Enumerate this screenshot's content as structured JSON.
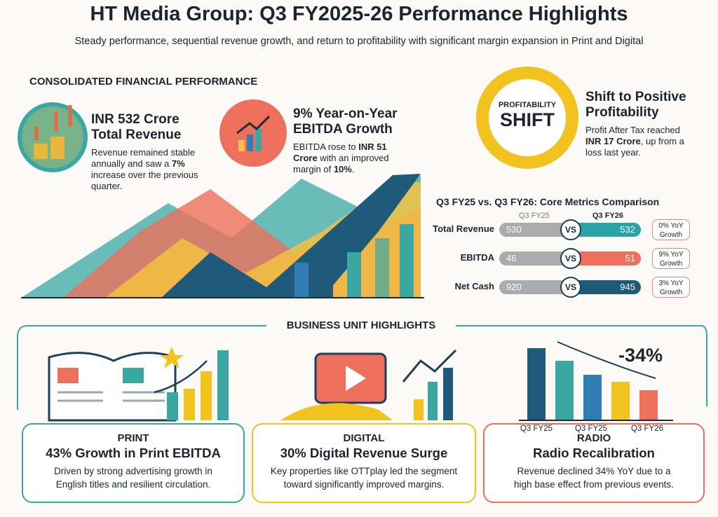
{
  "header": {
    "title": "HT Media Group: Q3 FY2025-26 Performance Highlights",
    "subtitle": "Steady performance, sequential revenue growth, and return to profitability with significant margin expansion in Print and Digital"
  },
  "consolidated": {
    "heading": "CONSOLIDATED FINANCIAL PERFORMANCE",
    "revenue": {
      "title": [
        "INR 532 Crore",
        "Total Revenue"
      ],
      "text": [
        "Revenue remained stable annually and saw a ",
        "7%",
        " increase over the previous quarter."
      ]
    },
    "ebitda": {
      "title": [
        "9% Year-on-Year",
        "EBITDA Growth"
      ],
      "text": [
        "EBITDA rose to ",
        "INR 51 Crore",
        " with an improved margin of ",
        "10%",
        "."
      ]
    },
    "profit": {
      "badge": [
        "PROFITABILITY",
        "SHIFT"
      ],
      "title": [
        "Shift to Positive",
        "Profitability"
      ],
      "text": [
        "Profit After Tax reached ",
        "INR 17 Crore",
        ", up from a loss last year."
      ]
    }
  },
  "comparison": {
    "title": "Q3 FY25 vs. Q3 FY26: Core Metrics Comparison",
    "columns": [
      "Q3 FY25",
      "Q3 FY26"
    ],
    "separator": "VS",
    "rows": [
      {
        "metric": "Total Revenue",
        "q3fy25": 530,
        "q3fy26": 532,
        "growth": [
          "0% YoY",
          "Growth"
        ]
      },
      {
        "metric": "EBITDA",
        "q3fy25": 46,
        "q3fy26": 51,
        "growth": [
          "9% YoY",
          "Growth"
        ]
      },
      {
        "metric": "Net Cash",
        "q3fy25": 920,
        "q3fy26": 945,
        "growth": [
          "3% YoY",
          "Growth"
        ]
      }
    ]
  },
  "units": {
    "heading": "BUSINESS UNIT HIGHLIGHTS",
    "items": [
      {
        "label": "PRINT",
        "title": "43% Growth in Print EBITDA",
        "text": [
          "Driven by strong advertising growth in",
          "English titles and resilient circulation."
        ]
      },
      {
        "label": "DIGITAL",
        "title": "30% Digital Revenue Surge",
        "text": [
          "Key properties like OTTplay led the segment",
          "toward significantly improved margins."
        ]
      },
      {
        "label": "RADIO",
        "title": "Radio Recalibration",
        "text": [
          "Revenue declined 34% YoY due to a",
          "high base effect from previous events."
        ]
      }
    ],
    "radio_chart": {
      "change": "-34%",
      "labels": [
        "Q3 FY25",
        "Q3 FY25",
        "Q3 FY26"
      ]
    }
  }
}
